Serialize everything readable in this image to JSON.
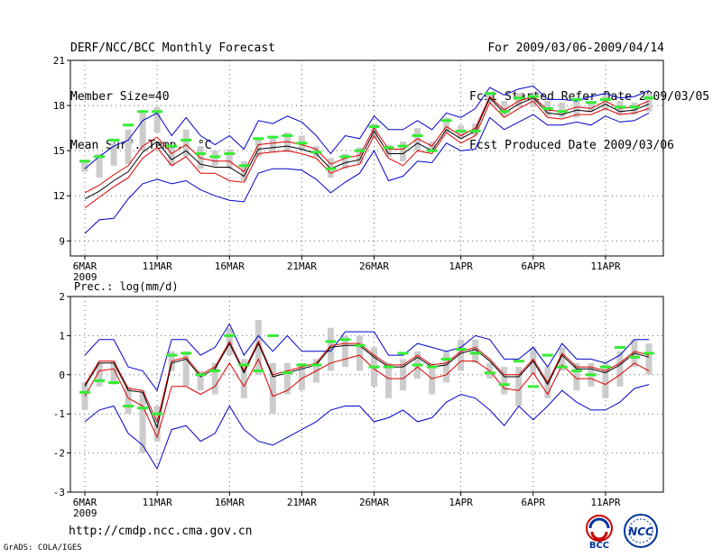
{
  "header": {
    "line1_left": "DERF/NCC/BCC Monthly Forecast",
    "line2_left": "Member Size=40",
    "line3_left": "Mean Surf. Temp.: °C",
    "line1_right": "For 2009/03/06-2009/04/14",
    "line2_right": "Fcst Started Refer Date 2009/03/05",
    "line3_right": "Fcst Produced Date 2009/03/06"
  },
  "panel2_label": "Prec.: log(mm/d)",
  "footer": {
    "url": "http://cmdp.ncc.cma.gov.cn",
    "grads": "GrADS: COLA/IGES"
  },
  "logos": {
    "left_text": "BCC",
    "right_text": "NCC"
  },
  "colors": {
    "envelope": "#0000cc",
    "mean": "#000000",
    "inner": "#dd0000",
    "observed": "#33ee33",
    "box": "#cccccc",
    "grid": "#666666"
  },
  "chart_data": [
    {
      "type": "line",
      "title": "Mean Surf. Temp.: °C",
      "x": [
        1,
        2,
        3,
        4,
        5,
        6,
        7,
        8,
        9,
        10,
        11,
        12,
        13,
        14,
        15,
        16,
        17,
        18,
        19,
        20,
        21,
        22,
        23,
        24,
        25,
        26,
        27,
        28,
        29,
        30,
        31,
        32,
        33,
        34,
        35,
        36,
        37,
        38,
        39,
        40
      ],
      "xlim": [
        0,
        41
      ],
      "ylim": [
        8,
        21
      ],
      "yticks": [
        9,
        12,
        15,
        18,
        21
      ],
      "xticks": [
        {
          "x": 1,
          "label": "6MAR",
          "sub": "2009"
        },
        {
          "x": 6,
          "label": "11MAR"
        },
        {
          "x": 11,
          "label": "16MAR"
        },
        {
          "x": 16,
          "label": "21MAR"
        },
        {
          "x": 21,
          "label": "26MAR"
        },
        {
          "x": 27,
          "label": "1APR"
        },
        {
          "x": 32,
          "label": "6APR"
        },
        {
          "x": 37,
          "label": "11APR"
        }
      ],
      "grid": true,
      "series": [
        {
          "name": "max",
          "style": "envelope",
          "values": [
            13.8,
            14.6,
            15.3,
            15.7,
            17.0,
            17.5,
            16.0,
            17.2,
            16.0,
            15.4,
            16.0,
            15.1,
            17.0,
            16.8,
            17.3,
            16.9,
            16.0,
            14.8,
            16.0,
            15.8,
            17.3,
            16.4,
            16.4,
            17.0,
            16.4,
            17.5,
            17.2,
            17.8,
            19.2,
            18.7,
            19.1,
            19.3,
            18.4,
            18.4,
            18.3,
            18.6,
            18.8,
            18.5,
            18.6,
            19.0
          ]
        },
        {
          "name": "p75",
          "style": "inner",
          "values": [
            12.2,
            12.7,
            13.4,
            14.0,
            15.3,
            15.9,
            14.8,
            15.4,
            14.5,
            14.3,
            14.3,
            13.6,
            15.4,
            15.5,
            15.6,
            15.4,
            15.1,
            14.1,
            14.5,
            14.7,
            16.5,
            15.1,
            15.1,
            15.8,
            15.3,
            16.6,
            16.0,
            16.5,
            18.6,
            17.7,
            18.3,
            18.6,
            17.7,
            17.6,
            17.9,
            17.8,
            18.3,
            17.8,
            17.9,
            18.3
          ]
        },
        {
          "name": "mean",
          "style": "mean",
          "values": [
            11.8,
            12.3,
            13.0,
            13.6,
            14.9,
            15.6,
            14.4,
            15.0,
            14.1,
            13.9,
            13.9,
            13.3,
            15.1,
            15.2,
            15.3,
            15.1,
            14.8,
            13.8,
            14.2,
            14.4,
            16.3,
            14.8,
            14.8,
            15.5,
            15.0,
            16.4,
            15.8,
            16.3,
            18.5,
            17.5,
            18.1,
            18.5,
            17.5,
            17.4,
            17.7,
            17.6,
            18.1,
            17.6,
            17.7,
            18.1
          ]
        },
        {
          "name": "p25",
          "style": "inner",
          "values": [
            11.2,
            11.9,
            12.6,
            13.2,
            14.5,
            15.2,
            14.0,
            14.6,
            13.5,
            13.5,
            13.0,
            12.9,
            14.8,
            14.9,
            15.0,
            14.8,
            14.5,
            13.5,
            13.9,
            14.1,
            16.0,
            14.5,
            14.0,
            15.0,
            14.8,
            16.2,
            15.5,
            16.0,
            18.2,
            17.2,
            17.8,
            18.3,
            17.2,
            17.1,
            17.4,
            17.4,
            17.8,
            17.4,
            17.5,
            17.8
          ]
        },
        {
          "name": "min",
          "style": "envelope",
          "values": [
            9.5,
            10.4,
            10.5,
            11.8,
            12.8,
            13.1,
            12.8,
            13.0,
            12.4,
            12.0,
            11.7,
            11.6,
            13.5,
            13.8,
            13.8,
            13.7,
            13.1,
            12.2,
            12.9,
            13.5,
            15.0,
            13.0,
            13.3,
            14.3,
            14.2,
            15.5,
            15.0,
            15.1,
            17.2,
            16.4,
            16.9,
            17.4,
            16.7,
            16.7,
            16.9,
            16.7,
            17.3,
            16.9,
            17.0,
            17.5
          ]
        },
        {
          "name": "box_low",
          "style": "box",
          "values": [
            13.6,
            13.2,
            14.0,
            14.1,
            15.0,
            16.2,
            14.0,
            14.6,
            13.8,
            14.0,
            13.8,
            13.0,
            14.6,
            14.9,
            14.9,
            15.0,
            14.6,
            13.2,
            13.8,
            14.1,
            15.8,
            14.6,
            14.3,
            15.0,
            14.9,
            16.2,
            15.8,
            16.0,
            18.2,
            17.3,
            17.9,
            17.9,
            17.3,
            17.2,
            17.2,
            17.6,
            17.7,
            17.4,
            17.4,
            17.6
          ]
        },
        {
          "name": "box_high",
          "style": "box",
          "values": [
            14.3,
            14.8,
            15.5,
            16.4,
            17.5,
            17.9,
            15.2,
            16.4,
            15.3,
            15.0,
            15.1,
            14.3,
            15.8,
            15.9,
            16.2,
            16.0,
            15.3,
            14.5,
            14.8,
            15.2,
            16.8,
            15.4,
            15.6,
            16.5,
            15.6,
            17.2,
            16.7,
            16.8,
            18.9,
            18.3,
            18.8,
            18.7,
            18.3,
            18.2,
            18.5,
            18.2,
            18.7,
            18.3,
            18.2,
            18.8
          ]
        },
        {
          "name": "observed",
          "style": "observed",
          "values": [
            14.3,
            14.6,
            15.7,
            16.7,
            17.6,
            17.6,
            15.3,
            15.7,
            14.8,
            14.6,
            14.8,
            14.0,
            15.8,
            15.9,
            16.0,
            15.5,
            14.9,
            13.8,
            14.6,
            15.0,
            16.6,
            15.2,
            15.3,
            16.0,
            15.0,
            17.0,
            16.3,
            16.3,
            18.8,
            17.6,
            18.5,
            18.6,
            17.8,
            17.6,
            18.4,
            18.2,
            18.4,
            17.9,
            17.9,
            18.5
          ]
        }
      ]
    },
    {
      "type": "line",
      "title": "Prec.: log(mm/d)",
      "x": [
        1,
        2,
        3,
        4,
        5,
        6,
        7,
        8,
        9,
        10,
        11,
        12,
        13,
        14,
        15,
        16,
        17,
        18,
        19,
        20,
        21,
        22,
        23,
        24,
        25,
        26,
        27,
        28,
        29,
        30,
        31,
        32,
        33,
        34,
        35,
        36,
        37,
        38,
        39,
        40
      ],
      "xlim": [
        0,
        41
      ],
      "ylim": [
        -3,
        2
      ],
      "yticks": [
        -3,
        -2,
        -1,
        0,
        1,
        2
      ],
      "xticks": [
        {
          "x": 1,
          "label": "6MAR",
          "sub": "2009"
        },
        {
          "x": 6,
          "label": "11MAR"
        },
        {
          "x": 11,
          "label": "16MAR"
        },
        {
          "x": 16,
          "label": "21MAR"
        },
        {
          "x": 21,
          "label": "26MAR"
        },
        {
          "x": 27,
          "label": "1APR"
        },
        {
          "x": 32,
          "label": "6APR"
        },
        {
          "x": 37,
          "label": "11APR"
        }
      ],
      "grid": true,
      "series": [
        {
          "name": "max",
          "style": "envelope",
          "values": [
            0.5,
            0.9,
            0.9,
            0.2,
            0.1,
            -0.4,
            0.9,
            0.9,
            0.5,
            0.7,
            1.3,
            0.5,
            1.0,
            0.6,
            1.0,
            0.6,
            0.6,
            0.6,
            1.1,
            1.1,
            1.1,
            0.5,
            0.5,
            0.8,
            0.7,
            0.6,
            0.7,
            1.0,
            0.9,
            0.4,
            0.4,
            0.7,
            0.2,
            0.8,
            0.4,
            0.4,
            0.3,
            0.5,
            0.9,
            0.9
          ]
        },
        {
          "name": "p75",
          "style": "inner",
          "values": [
            -0.25,
            0.35,
            0.35,
            -0.35,
            -0.4,
            -1.2,
            0.35,
            0.45,
            0.0,
            0.2,
            0.85,
            0.1,
            0.85,
            0.0,
            0.1,
            0.2,
            0.3,
            0.75,
            0.8,
            0.8,
            0.5,
            0.25,
            0.25,
            0.5,
            0.25,
            0.3,
            0.6,
            0.7,
            0.4,
            0.0,
            0.0,
            0.4,
            -0.2,
            0.55,
            0.2,
            0.2,
            0.1,
            0.3,
            0.6,
            0.5
          ]
        },
        {
          "name": "mean",
          "style": "mean",
          "values": [
            -0.3,
            0.3,
            0.3,
            -0.4,
            -0.45,
            -1.35,
            0.3,
            0.4,
            -0.05,
            0.15,
            0.8,
            0.05,
            0.8,
            -0.05,
            0.05,
            0.15,
            0.25,
            0.7,
            0.75,
            0.75,
            0.45,
            0.2,
            0.2,
            0.45,
            0.2,
            0.25,
            0.55,
            0.65,
            0.35,
            -0.05,
            -0.05,
            0.35,
            -0.25,
            0.5,
            0.15,
            0.15,
            0.05,
            0.25,
            0.55,
            0.45
          ]
        },
        {
          "name": "p25",
          "style": "inner",
          "values": [
            -0.55,
            0.1,
            0.15,
            -0.6,
            -0.8,
            -1.6,
            -0.3,
            -0.3,
            -0.5,
            -0.3,
            0.3,
            -0.3,
            0.4,
            -0.55,
            -0.4,
            -0.1,
            0.1,
            0.3,
            0.4,
            0.5,
            0.15,
            -0.1,
            -0.1,
            0.2,
            -0.1,
            0.0,
            0.35,
            0.35,
            0.1,
            -0.35,
            -0.4,
            0.05,
            -0.5,
            0.25,
            -0.1,
            -0.1,
            -0.25,
            0.0,
            0.3,
            0.1
          ]
        },
        {
          "name": "min",
          "style": "envelope",
          "values": [
            -1.2,
            -0.9,
            -0.8,
            -1.5,
            -1.8,
            -2.4,
            -1.4,
            -1.3,
            -1.7,
            -1.5,
            -0.8,
            -1.4,
            -1.7,
            -1.8,
            -1.6,
            -1.4,
            -1.2,
            -0.9,
            -0.8,
            -0.8,
            -1.2,
            -1.1,
            -0.9,
            -1.2,
            -1.1,
            -0.7,
            -0.5,
            -0.6,
            -0.9,
            -1.3,
            -0.8,
            -1.15,
            -0.8,
            -0.4,
            -0.7,
            -0.9,
            -0.9,
            -0.7,
            -0.35,
            -0.25
          ]
        },
        {
          "name": "box_low",
          "style": "box",
          "values": [
            -0.9,
            -0.3,
            -0.25,
            -1.0,
            -2.0,
            -1.7,
            0.1,
            -0.3,
            -0.4,
            -0.5,
            0.5,
            -0.6,
            0.0,
            -1.0,
            -0.5,
            -0.4,
            -0.2,
            0.1,
            0.2,
            0.1,
            -0.3,
            -0.6,
            -0.4,
            -0.1,
            -0.5,
            -0.2,
            0.1,
            0.3,
            -0.1,
            -0.5,
            -0.8,
            0.0,
            -0.6,
            0.1,
            -0.4,
            -0.3,
            -0.6,
            -0.3,
            0.2,
            0.0
          ]
        },
        {
          "name": "box_high",
          "style": "box",
          "values": [
            -0.2,
            0.3,
            0.35,
            -0.3,
            -0.4,
            -0.8,
            0.6,
            0.6,
            0.1,
            0.3,
            1.2,
            0.4,
            1.4,
            0.3,
            0.3,
            0.3,
            0.4,
            1.2,
            1.0,
            1.0,
            0.7,
            0.3,
            0.4,
            0.6,
            0.3,
            0.6,
            0.9,
            0.9,
            0.3,
            0.2,
            0.2,
            0.7,
            0.2,
            0.7,
            0.3,
            0.3,
            0.3,
            0.6,
            0.9,
            0.8
          ]
        },
        {
          "name": "observed",
          "style": "observed",
          "values": [
            -0.45,
            -0.15,
            -0.2,
            -0.8,
            -0.85,
            -1.0,
            0.5,
            0.55,
            0.0,
            0.1,
            1.0,
            0.25,
            0.1,
            1.0,
            0.05,
            0.25,
            0.25,
            0.85,
            0.9,
            0.75,
            0.2,
            0.2,
            0.55,
            0.25,
            0.2,
            0.4,
            0.65,
            0.55,
            0.05,
            -0.25,
            0.35,
            -0.3,
            0.5,
            0.2,
            0.1,
            0.0,
            0.2,
            0.7,
            0.45,
            0.55
          ]
        }
      ]
    }
  ]
}
